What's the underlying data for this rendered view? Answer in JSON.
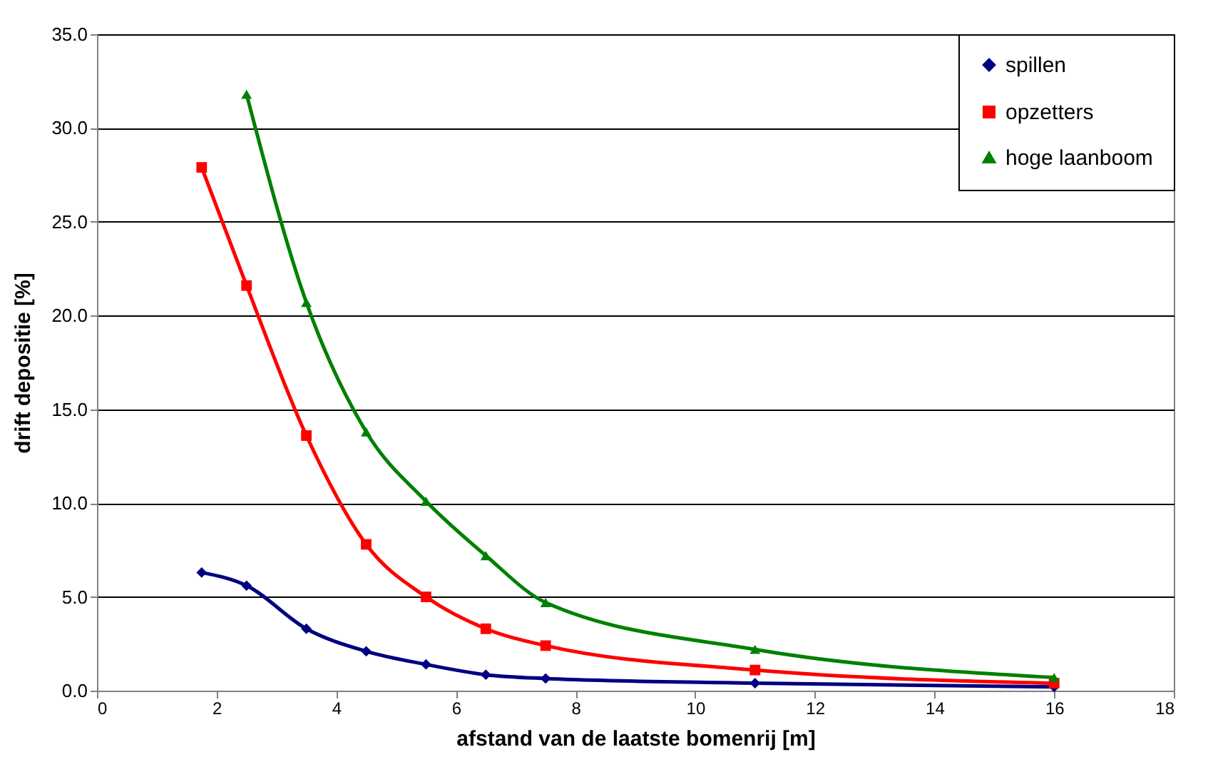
{
  "chart_data": {
    "type": "line",
    "xlabel": "afstand van de laatste bomenrij [m]",
    "ylabel": "drift depositie [%]",
    "xlim": [
      0,
      18
    ],
    "xticks": [
      0,
      2,
      4,
      6,
      8,
      10,
      12,
      14,
      16,
      18
    ],
    "ylim": [
      0,
      35
    ],
    "yticks": [
      {
        "value": 0,
        "label": "0.0"
      },
      {
        "value": 5,
        "label": "5.0"
      },
      {
        "value": 10,
        "label": "10.0"
      },
      {
        "value": 15,
        "label": "15.0"
      },
      {
        "value": 20,
        "label": "20.0"
      },
      {
        "value": 25,
        "label": "25.0"
      },
      {
        "value": 30,
        "label": "30.0"
      },
      {
        "value": 35,
        "label": "35.0"
      }
    ],
    "grid": "y",
    "legend": "top right",
    "series": [
      {
        "name": "spillen",
        "color": "#000080",
        "marker": "diamond",
        "x": [
          1.75,
          2.5,
          3.5,
          4.5,
          5.5,
          6.5,
          7.5,
          11,
          16
        ],
        "values": [
          6.3,
          5.6,
          3.3,
          2.1,
          1.4,
          0.85,
          0.65,
          0.4,
          0.2
        ]
      },
      {
        "name": "opzetters",
        "color": "#ff0000",
        "marker": "square",
        "x": [
          1.75,
          2.5,
          3.5,
          4.5,
          5.5,
          6.5,
          7.5,
          11,
          16
        ],
        "values": [
          27.9,
          21.6,
          13.6,
          7.8,
          5.0,
          3.3,
          2.4,
          1.1,
          0.4
        ]
      },
      {
        "name": "hoge laanboom",
        "color": "#008000",
        "marker": "triangle",
        "x": [
          2.5,
          3.5,
          4.5,
          5.5,
          6.5,
          7.5,
          11,
          16
        ],
        "values": [
          31.8,
          20.7,
          13.8,
          10.1,
          7.2,
          4.7,
          2.2,
          0.7
        ]
      }
    ]
  }
}
